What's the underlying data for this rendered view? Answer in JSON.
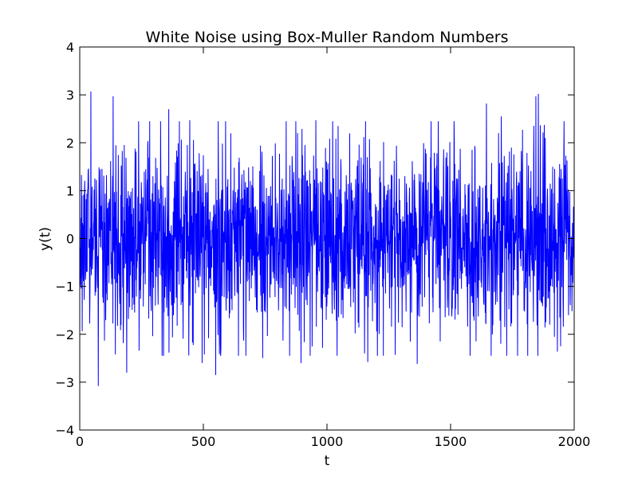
{
  "chart_data": {
    "type": "line",
    "title": "White Noise using Box-Muller Random Numbers",
    "xlabel": "t",
    "ylabel": "y(t)",
    "xlim": [
      0,
      2000
    ],
    "ylim": [
      -4,
      4
    ],
    "xticks": [
      0,
      500,
      1000,
      1500,
      2000
    ],
    "xtick_labels": [
      "0",
      "500",
      "1000",
      "1500",
      "2000"
    ],
    "yticks": [
      -4,
      -3,
      -2,
      -1,
      0,
      1,
      2,
      3,
      4
    ],
    "ytick_labels": [
      "−4",
      "−3",
      "−2",
      "−1",
      "0",
      "1",
      "2",
      "3",
      "4"
    ],
    "grid": false,
    "legend": "none",
    "series": [
      {
        "color": "#0000ff",
        "n_points": 2000,
        "distribution": "gaussian",
        "mean": 0.0,
        "std": 1.0,
        "notable_points": [
          {
            "x": 45,
            "y": 3.07
          },
          {
            "x": 75,
            "y": -3.08
          },
          {
            "x": 135,
            "y": 2.97
          },
          {
            "x": 190,
            "y": -2.8
          },
          {
            "x": 360,
            "y": 2.7
          },
          {
            "x": 445,
            "y": 2.47
          },
          {
            "x": 495,
            "y": -2.6
          },
          {
            "x": 550,
            "y": -2.85
          },
          {
            "x": 740,
            "y": -2.5
          },
          {
            "x": 895,
            "y": -2.6
          },
          {
            "x": 955,
            "y": 2.47
          },
          {
            "x": 1045,
            "y": 2.35
          },
          {
            "x": 1165,
            "y": -2.58
          },
          {
            "x": 1365,
            "y": -2.62
          },
          {
            "x": 1645,
            "y": 2.82
          },
          {
            "x": 1705,
            "y": 2.55
          },
          {
            "x": 1845,
            "y": 2.97
          },
          {
            "x": 1855,
            "y": 3.02
          },
          {
            "x": 1945,
            "y": -2.25
          }
        ]
      }
    ]
  }
}
